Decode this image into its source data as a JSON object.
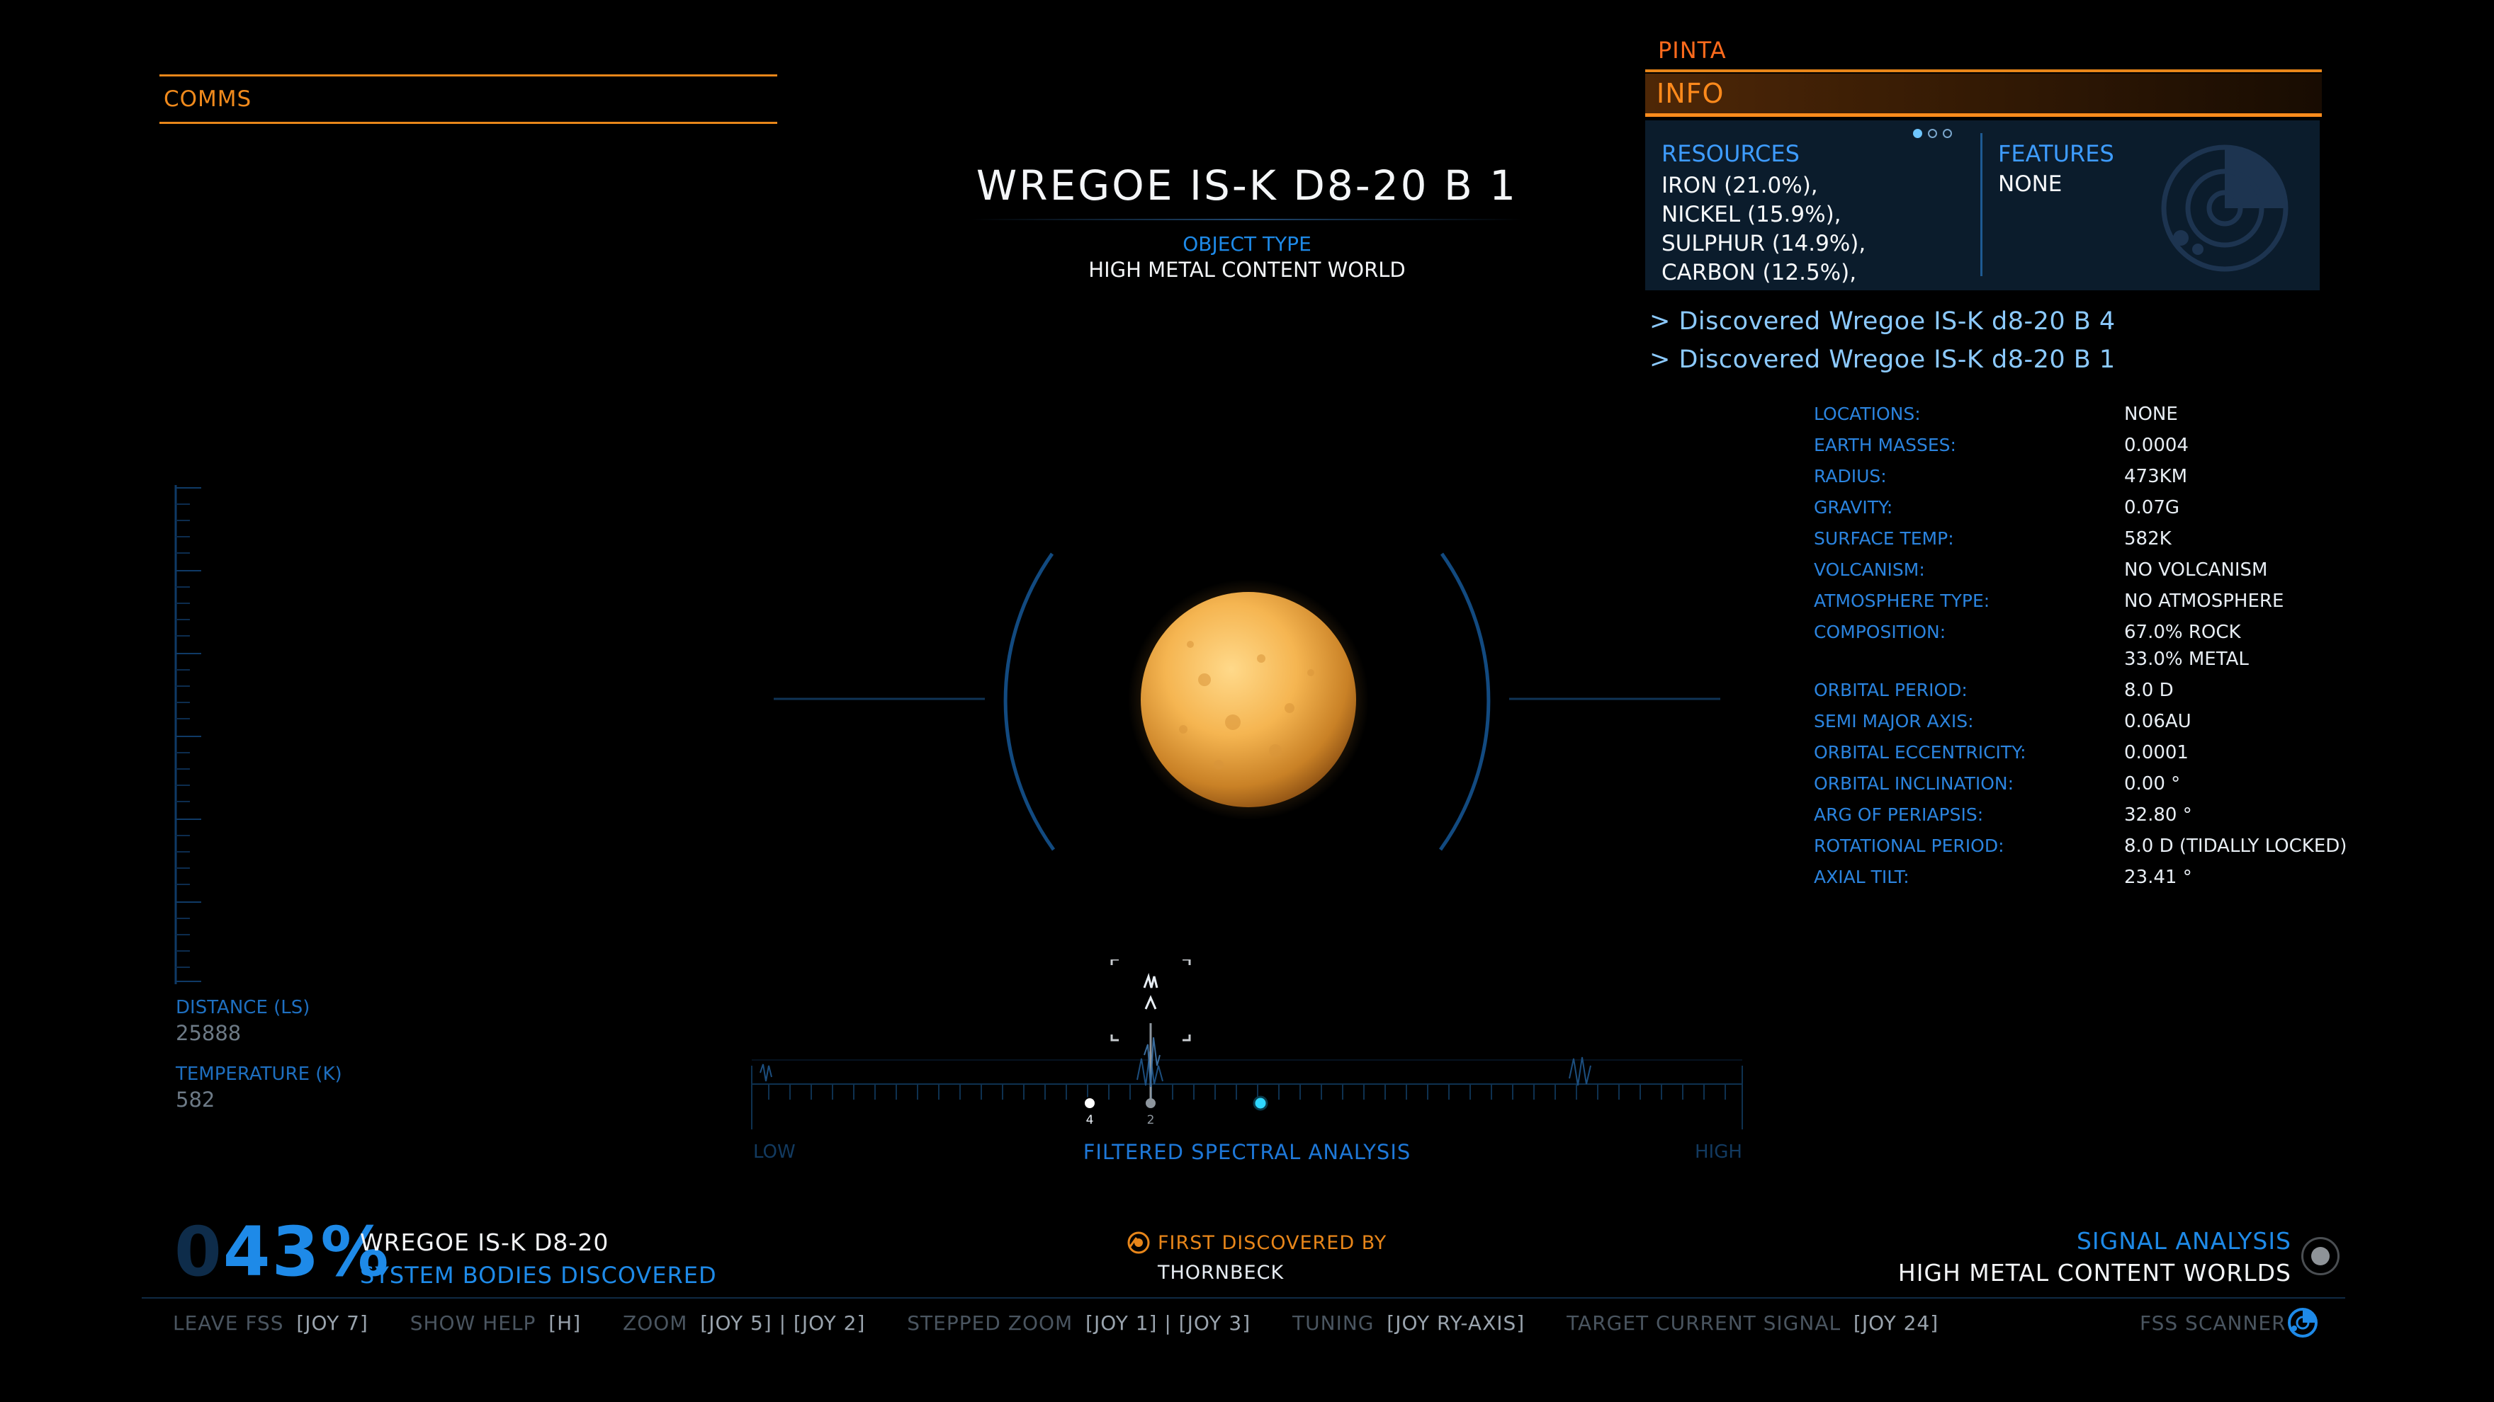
{
  "comms": {
    "label": "COMMS"
  },
  "target": {
    "title": "WREGOE IS-K D8-20 B 1",
    "object_type_label": "OBJECT TYPE",
    "object_type": "HIGH METAL CONTENT WORLD"
  },
  "info_panel": {
    "body_name": "PINTA",
    "header": "INFO",
    "resources_label": "RESOURCES",
    "resources": [
      "IRON (21.0%),",
      "NICKEL (15.9%),",
      "SULPHUR (14.9%),",
      "CARBON (12.5%),"
    ],
    "features_label": "FEATURES",
    "features_value": "NONE",
    "page_count": 3,
    "page_active": 1,
    "discoveries": [
      "> Discovered Wregoe IS-K d8-20 B 4",
      "> Discovered Wregoe IS-K d8-20 B 1"
    ]
  },
  "properties": [
    {
      "label": "LOCATIONS:",
      "value": "NONE"
    },
    {
      "label": "EARTH MASSES:",
      "value": "0.0004"
    },
    {
      "label": "RADIUS:",
      "value": "473KM"
    },
    {
      "label": "GRAVITY:",
      "value": "0.07G"
    },
    {
      "label": "SURFACE TEMP:",
      "value": "582K"
    },
    {
      "label": "VOLCANISM:",
      "value": "NO VOLCANISM"
    },
    {
      "label": "ATMOSPHERE TYPE:",
      "value": "NO ATMOSPHERE"
    },
    {
      "label": "COMPOSITION:",
      "value": "67.0% ROCK",
      "value2": "33.0% METAL"
    },
    {
      "label": "ORBITAL PERIOD:",
      "value": "8.0 D"
    },
    {
      "label": "SEMI MAJOR AXIS:",
      "value": "0.06AU"
    },
    {
      "label": "ORBITAL ECCENTRICITY:",
      "value": "0.0001"
    },
    {
      "label": "ORBITAL INCLINATION:",
      "value": "0.00 °"
    },
    {
      "label": "ARG OF PERIAPSIS:",
      "value": "32.80 °"
    },
    {
      "label": "ROTATIONAL PERIOD:",
      "value": "8.0 D (TIDALLY LOCKED)"
    },
    {
      "label": "AXIAL TILT:",
      "value": "23.41 °"
    }
  ],
  "readouts": {
    "distance_label": "DISTANCE (LS)",
    "distance_value": "25888",
    "temperature_label": "TEMPERATURE (K)",
    "temperature_value": "582"
  },
  "spectrum": {
    "low_label": "LOW",
    "high_label": "HIGH",
    "title": "FILTERED SPECTRAL ANALYSIS",
    "marker_labels": [
      "4",
      "2"
    ]
  },
  "progress": {
    "percent_dim": "0",
    "percent": "43%",
    "system_name": "WREGOE IS-K D8-20",
    "subtitle": "SYSTEM BODIES DISCOVERED"
  },
  "discovery": {
    "label": "FIRST DISCOVERED BY",
    "name": "THORNBECK"
  },
  "signal": {
    "label": "SIGNAL ANALYSIS",
    "value": "HIGH METAL CONTENT WORLDS"
  },
  "controls": [
    {
      "label": "LEAVE FSS",
      "key": "[JOY 7]"
    },
    {
      "label": "SHOW HELP",
      "key": "[H]"
    },
    {
      "label": "ZOOM",
      "key": "[JOY 5] | [JOY 2]"
    },
    {
      "label": "STEPPED ZOOM",
      "key": "[JOY 1] | [JOY 3]"
    },
    {
      "label": "TUNING",
      "key": "[JOY RY-AXIS]"
    },
    {
      "label": "TARGET CURRENT SIGNAL",
      "key": "[JOY 24]"
    }
  ],
  "fss_label": "FSS SCANNER",
  "colors": {
    "accent_orange": "#e8861a",
    "accent_blue": "#1e8ae8",
    "planet": "#f2b04c"
  }
}
